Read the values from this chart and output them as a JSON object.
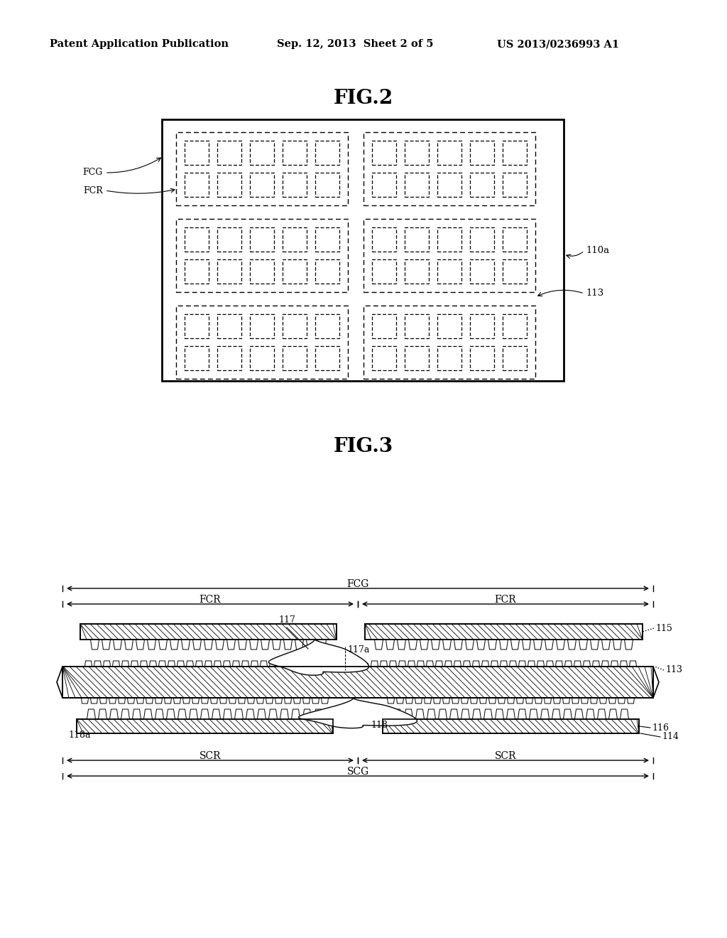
{
  "bg_color": "#ffffff",
  "header_left": "Patent Application Publication",
  "header_center": "Sep. 12, 2013  Sheet 2 of 5",
  "header_right": "US 2013/0236993 A1",
  "fig2_title": "FIG.2",
  "fig3_title": "FIG.3",
  "fig2_label_110a": "110a",
  "fig2_label_113": "113",
  "fig2_label_FCG": "FCG",
  "fig2_label_FCR": "FCR",
  "fig3_label_FCG": "FCG",
  "fig3_label_FCR": "FCR",
  "fig3_label_SCR": "SCR",
  "fig3_label_SCG": "SCG",
  "fig3_label_117": "117",
  "fig3_label_117a": "117a",
  "fig3_label_118": "118",
  "fig3_label_118a": "118a",
  "fig3_label_115": "115",
  "fig3_label_116": "116",
  "fig3_label_113": "113",
  "fig3_label_114": "114"
}
